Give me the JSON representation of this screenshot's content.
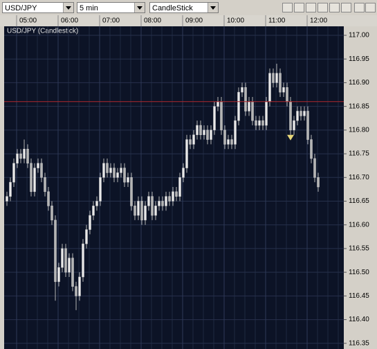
{
  "toolbar": {
    "symbol": "USD/JPY",
    "interval": "5 min",
    "chart_style": "CandleStick"
  },
  "chart_data": {
    "type": "candlestick",
    "title": "USD/JPY (Candlestick)",
    "categories": [
      null,
      null,
      null,
      "05:00",
      null,
      null,
      null,
      null,
      null,
      null,
      null,
      null,
      null,
      null,
      null,
      "06:00",
      null,
      null,
      null,
      null,
      null,
      null,
      null,
      null,
      null,
      null,
      null,
      "07:00",
      null,
      null,
      null,
      null,
      null,
      null,
      null,
      null,
      null,
      null,
      null,
      "08:00",
      null,
      null,
      null,
      null,
      null,
      null,
      null,
      null,
      null,
      null,
      null,
      "09:00",
      null,
      null,
      null,
      null,
      null,
      null,
      null,
      null,
      null,
      null,
      null,
      "10:00",
      null,
      null,
      null,
      null,
      null,
      null,
      null,
      null,
      null,
      null,
      null,
      "11:00",
      null,
      null,
      null,
      null,
      null,
      null,
      null,
      null,
      null,
      null,
      null,
      "12:00",
      null,
      null,
      null
    ],
    "open": [
      116.65,
      116.66,
      116.69,
      116.73,
      116.75,
      116.74,
      116.76,
      116.73,
      116.67,
      116.72,
      116.73,
      116.7,
      116.67,
      116.64,
      116.61,
      116.48,
      116.51,
      116.55,
      116.5,
      116.53,
      116.47,
      116.45,
      116.49,
      116.56,
      116.59,
      116.62,
      116.64,
      116.65,
      116.7,
      116.73,
      116.71,
      116.72,
      116.7,
      116.71,
      116.72,
      116.69,
      116.7,
      116.64,
      116.62,
      116.65,
      116.61,
      116.64,
      116.66,
      116.62,
      116.64,
      116.65,
      116.64,
      116.66,
      116.65,
      116.67,
      116.66,
      116.7,
      116.72,
      116.78,
      116.77,
      116.79,
      116.81,
      116.79,
      116.8,
      116.78,
      116.8,
      116.85,
      116.86,
      116.8,
      116.77,
      116.78,
      116.77,
      116.82,
      116.88,
      116.89,
      116.84,
      116.86,
      116.82,
      116.81,
      116.82,
      116.81,
      116.86,
      116.92,
      116.9,
      116.92,
      116.88,
      116.89,
      116.86,
      116.8,
      116.82,
      116.84,
      116.83,
      116.84,
      116.78,
      116.74,
      116.7
    ],
    "high": [
      116.67,
      116.7,
      116.74,
      116.76,
      116.76,
      116.78,
      116.77,
      116.74,
      116.73,
      116.74,
      116.74,
      116.71,
      116.68,
      116.65,
      116.62,
      116.52,
      116.56,
      116.56,
      116.54,
      116.54,
      116.48,
      116.5,
      116.57,
      116.6,
      116.63,
      116.65,
      116.66,
      116.71,
      116.74,
      116.74,
      116.73,
      116.73,
      116.72,
      116.73,
      116.73,
      116.71,
      116.71,
      116.65,
      116.66,
      116.66,
      116.65,
      116.67,
      116.67,
      116.65,
      116.66,
      116.66,
      116.67,
      116.67,
      116.68,
      116.68,
      116.71,
      116.73,
      116.79,
      116.79,
      116.8,
      116.82,
      116.82,
      116.81,
      116.81,
      116.81,
      116.86,
      116.87,
      116.87,
      116.81,
      116.79,
      116.79,
      116.83,
      116.89,
      116.9,
      116.9,
      116.87,
      116.87,
      116.83,
      116.83,
      116.83,
      116.87,
      116.93,
      116.93,
      116.94,
      116.93,
      116.9,
      116.9,
      116.87,
      116.83,
      116.85,
      116.85,
      116.85,
      116.85,
      116.79,
      116.75,
      116.71
    ],
    "low": [
      116.64,
      116.65,
      116.68,
      116.72,
      116.73,
      116.73,
      116.72,
      116.66,
      116.66,
      116.71,
      116.69,
      116.66,
      116.63,
      116.6,
      116.44,
      116.47,
      116.5,
      116.49,
      116.49,
      116.46,
      116.42,
      116.44,
      116.48,
      116.55,
      116.58,
      116.61,
      116.63,
      116.64,
      116.69,
      116.7,
      116.7,
      116.69,
      116.69,
      116.7,
      116.68,
      116.68,
      116.63,
      116.61,
      116.61,
      116.6,
      116.6,
      116.63,
      116.61,
      116.61,
      116.63,
      116.63,
      116.63,
      116.64,
      116.64,
      116.65,
      116.65,
      116.69,
      116.71,
      116.76,
      116.76,
      116.78,
      116.78,
      116.78,
      116.77,
      116.77,
      116.79,
      116.84,
      116.79,
      116.76,
      116.76,
      116.76,
      116.76,
      116.81,
      116.87,
      116.83,
      116.83,
      116.81,
      116.8,
      116.8,
      116.8,
      116.8,
      116.85,
      116.89,
      116.89,
      116.87,
      116.87,
      116.85,
      116.79,
      116.79,
      116.81,
      116.82,
      116.82,
      116.77,
      116.73,
      116.69,
      116.67
    ],
    "close": [
      116.66,
      116.69,
      116.73,
      116.75,
      116.74,
      116.76,
      116.73,
      116.67,
      116.72,
      116.73,
      116.7,
      116.67,
      116.64,
      116.61,
      116.48,
      116.51,
      116.55,
      116.5,
      116.53,
      116.47,
      116.45,
      116.49,
      116.56,
      116.59,
      116.62,
      116.64,
      116.65,
      116.7,
      116.73,
      116.71,
      116.72,
      116.7,
      116.71,
      116.72,
      116.69,
      116.7,
      116.64,
      116.62,
      116.65,
      116.61,
      116.64,
      116.66,
      116.62,
      116.64,
      116.65,
      116.64,
      116.66,
      116.65,
      116.67,
      116.66,
      116.7,
      116.72,
      116.78,
      116.77,
      116.79,
      116.81,
      116.79,
      116.8,
      116.78,
      116.8,
      116.85,
      116.86,
      116.8,
      116.77,
      116.78,
      116.77,
      116.82,
      116.88,
      116.89,
      116.84,
      116.86,
      116.82,
      116.81,
      116.82,
      116.81,
      116.86,
      116.92,
      116.9,
      116.92,
      116.88,
      116.89,
      116.86,
      116.8,
      116.82,
      116.84,
      116.83,
      116.84,
      116.78,
      116.74,
      116.7,
      116.68
    ],
    "ylim": [
      116.338,
      117.019
    ],
    "yticks": [
      {
        "value": 117,
        "label": "117.00"
      },
      116.95,
      {
        "value": 116.9,
        "label": "116.90"
      },
      116.85,
      {
        "value": 116.8,
        "label": "116.80"
      },
      116.75,
      {
        "value": 116.7,
        "label": "116.70"
      },
      116.65,
      {
        "value": 116.6,
        "label": "116.60"
      },
      116.55,
      {
        "value": 116.5,
        "label": "116.50"
      },
      116.45,
      {
        "value": 116.4,
        "label": "116.40"
      },
      116.35
    ],
    "reference_line": 116.86,
    "reference_color": "#b0282d",
    "marker": {
      "index": 82,
      "value": 116.79,
      "color": "#e8d87a"
    },
    "color": "#b4b4b4",
    "grid": true
  }
}
